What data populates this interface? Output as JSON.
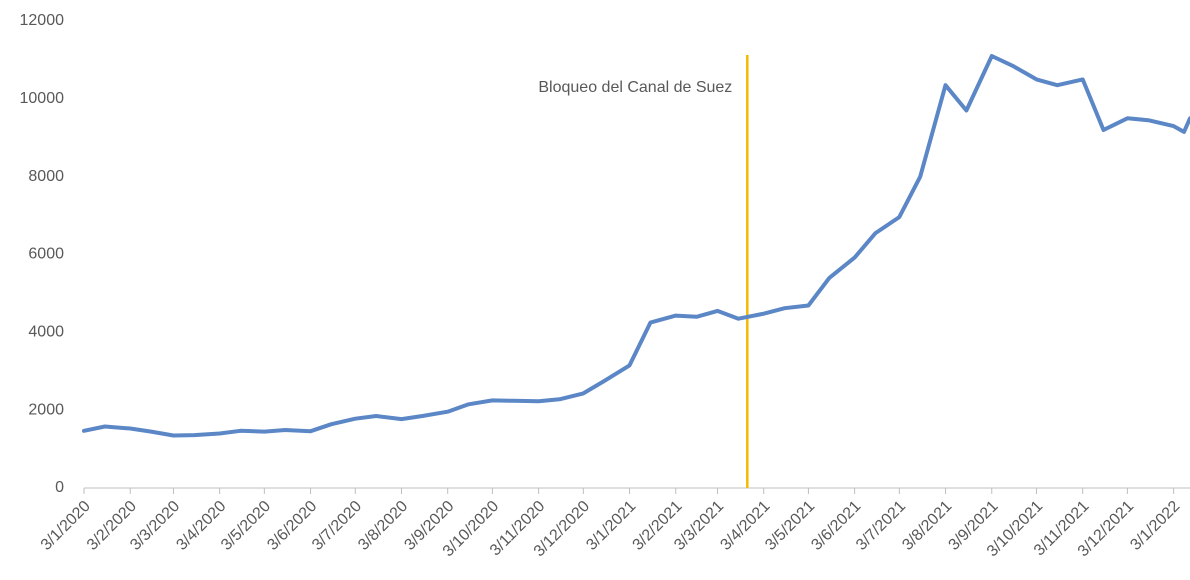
{
  "chart_data": {
    "type": "line",
    "x": [
      "3/1/2020",
      "17/1/2020",
      "3/2/2020",
      "17/2/2020",
      "3/3/2020",
      "17/3/2020",
      "3/4/2020",
      "17/4/2020",
      "3/5/2020",
      "17/5/2020",
      "3/6/2020",
      "17/6/2020",
      "3/7/2020",
      "17/7/2020",
      "3/8/2020",
      "17/8/2020",
      "3/9/2020",
      "17/9/2020",
      "3/10/2020",
      "17/10/2020",
      "3/11/2020",
      "17/11/2020",
      "3/12/2020",
      "17/12/2020",
      "3/1/2021",
      "17/1/2021",
      "3/2/2021",
      "17/2/2021",
      "3/3/2021",
      "17/3/2021",
      "3/4/2021",
      "17/4/2021",
      "3/5/2021",
      "17/5/2021",
      "3/6/2021",
      "17/6/2021",
      "3/7/2021",
      "17/7/2021",
      "3/8/2021",
      "17/8/2021",
      "3/9/2021",
      "17/9/2021",
      "3/10/2021",
      "17/10/2021",
      "3/11/2021",
      "17/11/2021",
      "3/12/2021",
      "17/12/2021",
      "3/1/2022",
      "10/1/2022",
      "14/1/2022"
    ],
    "series": [
      {
        "color": "#5b87c6",
        "values": [
          1470,
          1580,
          1530,
          1450,
          1350,
          1360,
          1400,
          1470,
          1450,
          1490,
          1460,
          1640,
          1780,
          1850,
          1770,
          1850,
          1960,
          2150,
          2250,
          2240,
          2230,
          2280,
          2430,
          2750,
          3150,
          4250,
          4430,
          4400,
          4550,
          4350,
          4480,
          4620,
          4690,
          5400,
          5920,
          6550,
          6960,
          8000,
          10350,
          9700,
          11100,
          10850,
          10500,
          10350,
          10500,
          9200,
          9500,
          9450,
          9300,
          9150,
          9500
        ]
      }
    ],
    "xlim": [
      "3/1/2020",
      "14/1/2022"
    ],
    "xticks": [
      "3/1/2020",
      "3/2/2020",
      "3/3/2020",
      "3/4/2020",
      "3/5/2020",
      "3/6/2020",
      "3/7/2020",
      "3/8/2020",
      "3/9/2020",
      "3/10/2020",
      "3/11/2020",
      "3/12/2020",
      "3/1/2021",
      "3/2/2021",
      "3/3/2021",
      "3/4/2021",
      "3/5/2021",
      "3/6/2021",
      "3/7/2021",
      "3/8/2021",
      "3/9/2021",
      "3/10/2021",
      "3/11/2021",
      "3/12/2021",
      "3/1/2022"
    ],
    "ylim": [
      0,
      12000
    ],
    "yticks": [
      0,
      2000,
      4000,
      6000,
      8000,
      10000,
      12000
    ],
    "annotation": {
      "text": "Bloqueo del Canal de Suez",
      "x": "23/3/2021",
      "color": "#f5b800"
    }
  }
}
